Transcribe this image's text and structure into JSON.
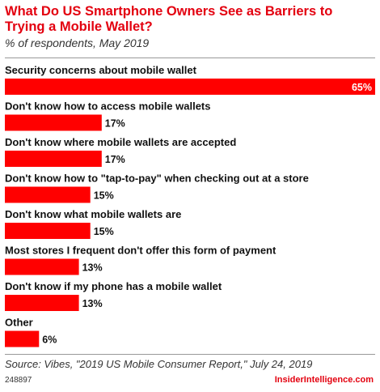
{
  "header": {
    "title": "What Do US Smartphone Owners See as Barriers to Trying a Mobile Wallet?",
    "subtitle": "% of respondents, May 2019"
  },
  "footer": {
    "source": "Source: Vibes, \"2019 US Mobile Consumer Report,\" July 24, 2019",
    "id": "248897",
    "brand": "InsiderIntelligence.com"
  },
  "colors": {
    "bar": "#ff0000",
    "title": "#e3000f"
  },
  "chart_data": {
    "type": "bar",
    "orientation": "horizontal",
    "categories": [
      "Security concerns about mobile wallet",
      "Don't know how to access mobile wallets",
      "Don't know where mobile wallets are accepted",
      "Don't know how to \"tap-to-pay\" when checking out at a store",
      "Don't know what mobile wallets are",
      "Most stores I frequent don't offer this form of payment",
      "Don't know if my phone has a mobile wallet",
      "Other"
    ],
    "values": [
      65,
      17,
      17,
      15,
      15,
      13,
      13,
      6
    ],
    "value_labels": [
      "65%",
      "17%",
      "17%",
      "15%",
      "15%",
      "13%",
      "13%",
      "6%"
    ],
    "unit": "%",
    "xlim": [
      0,
      65
    ],
    "grid": false,
    "legend": "none"
  }
}
